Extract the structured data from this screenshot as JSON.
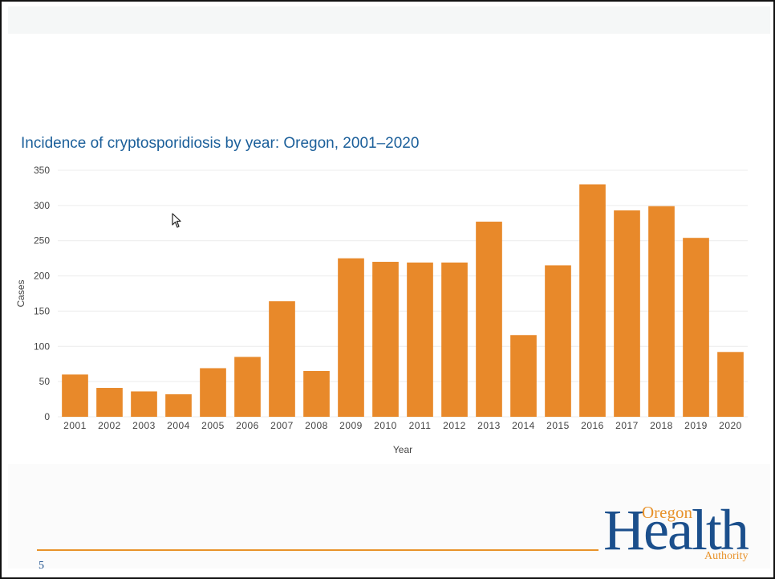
{
  "slide": {
    "page_number": "5"
  },
  "logo": {
    "line1": "Oregon",
    "line2": "Health",
    "line3": "Authority"
  },
  "chart_data": {
    "type": "bar",
    "title": "Incidence of cryptosporidiosis by year: Oregon, 2001–2020",
    "xlabel": "Year",
    "ylabel": "Cases",
    "categories": [
      "2001",
      "2002",
      "2003",
      "2004",
      "2005",
      "2006",
      "2007",
      "2008",
      "2009",
      "2010",
      "2011",
      "2012",
      "2013",
      "2014",
      "2015",
      "2016",
      "2017",
      "2018",
      "2019",
      "2020"
    ],
    "values": [
      60,
      41,
      36,
      32,
      69,
      85,
      164,
      65,
      225,
      220,
      219,
      219,
      277,
      116,
      215,
      330,
      293,
      299,
      254,
      92
    ],
    "ylim": [
      0,
      350
    ],
    "yticks": [
      0,
      50,
      100,
      150,
      200,
      250,
      300,
      350
    ],
    "grid": true,
    "bar_color": "#e8892a"
  }
}
